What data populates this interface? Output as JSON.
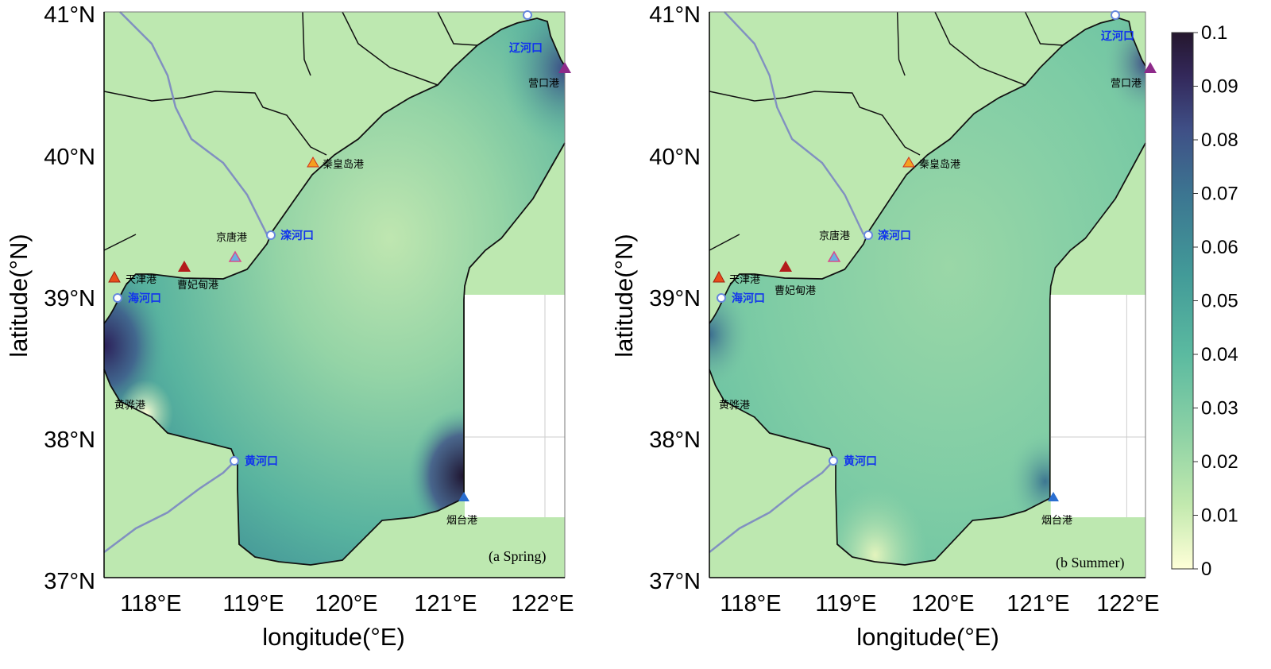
{
  "colors": {
    "land": "#bde8b0",
    "coast": "#111111",
    "river_line": "#8190c0",
    "cmap": [
      "#ffffd8",
      "#c2e9ae",
      "#8ed2a5",
      "#5bbaa0",
      "#429a98",
      "#3c7591",
      "#3f4f86",
      "#33285a",
      "#25172e"
    ]
  },
  "axes": {
    "x_ticks": [
      "118°E",
      "119°E",
      "120°E",
      "121°E",
      "122°E"
    ],
    "y_ticks": [
      "41°N",
      "40°N",
      "39°N",
      "38°N",
      "37°N"
    ],
    "xlabel": "longitude(°E)",
    "ylabel": "latitude(°N)"
  },
  "panels": [
    {
      "label": "(a Spring)"
    },
    {
      "label": "(b Summer)"
    }
  ],
  "ports": [
    "天津港",
    "曹妃甸港",
    "京唐港",
    "秦皇岛港",
    "营口港",
    "烟台港",
    "黄骅港"
  ],
  "rivers": [
    "海河口",
    "滦河口",
    "黄河口",
    "辽河口"
  ],
  "colorbar": {
    "min": 0,
    "max": 0.1,
    "ticks": [
      "0.1",
      "0.09",
      "0.08",
      "0.07",
      "0.06",
      "0.05",
      "0.04",
      "0.03",
      "0.02",
      "0.01",
      "0"
    ]
  }
}
